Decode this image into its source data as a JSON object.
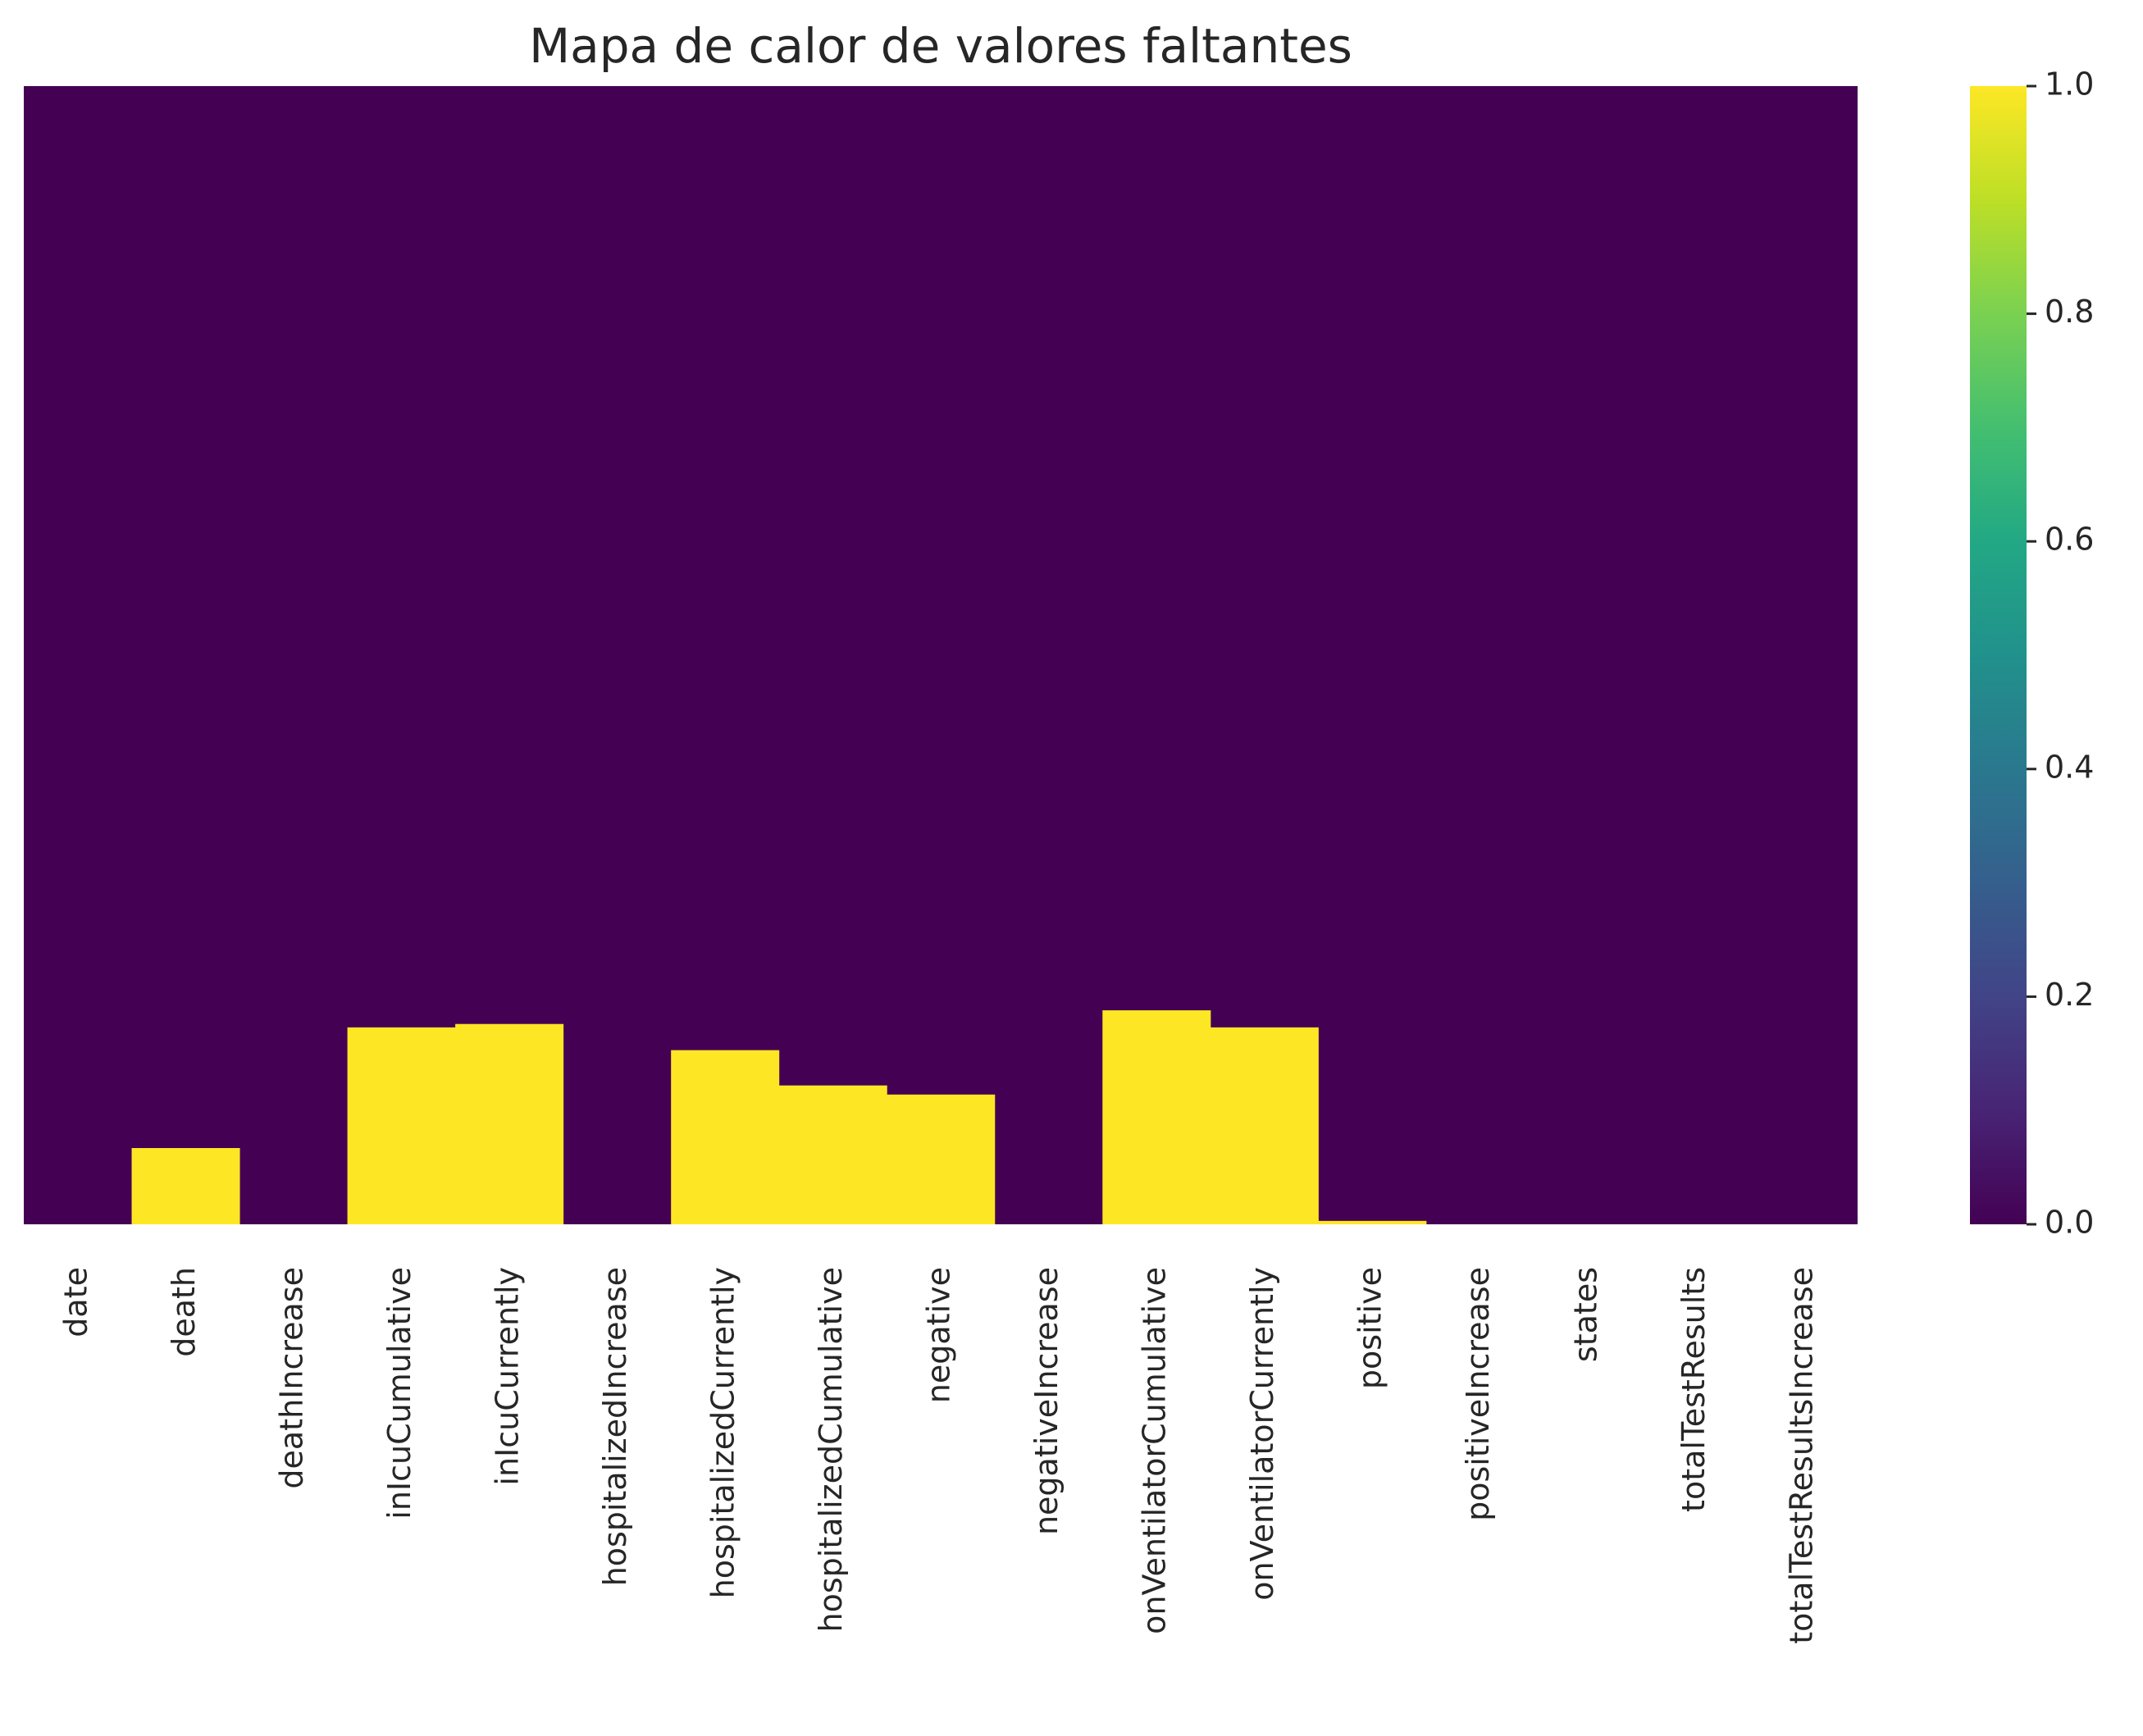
{
  "chart_data": {
    "type": "heatmap",
    "title": "Mapa de calor de valores faltantes",
    "xlabel": "",
    "ylabel": "",
    "colormap": "viridis",
    "present_color": "#440154",
    "missing_color": "#fde725",
    "columns": [
      "date",
      "death",
      "deathIncrease",
      "inIcuCumulative",
      "inIcuCurrently",
      "hospitalizedIncrease",
      "hospitalizedCurrently",
      "hospitalizedCumulative",
      "negative",
      "negativeIncrease",
      "onVentilatorCumulative",
      "onVentilatorCurrently",
      "positive",
      "positiveIncrease",
      "states",
      "totalTestResults",
      "totalTestResultsIncrease"
    ],
    "missing_fraction": [
      0,
      0.067,
      0,
      0.173,
      0.176,
      0,
      0.153,
      0.122,
      0.114,
      0,
      0.188,
      0.173,
      0.003,
      0,
      0,
      0,
      0
    ],
    "colorbar": {
      "range": [
        0.0,
        1.0
      ],
      "ticks": [
        0.0,
        0.2,
        0.4,
        0.6,
        0.8,
        1.0
      ],
      "tick_labels": [
        "0.0",
        "0.2",
        "0.4",
        "0.6",
        "0.8",
        "1.0"
      ]
    }
  }
}
